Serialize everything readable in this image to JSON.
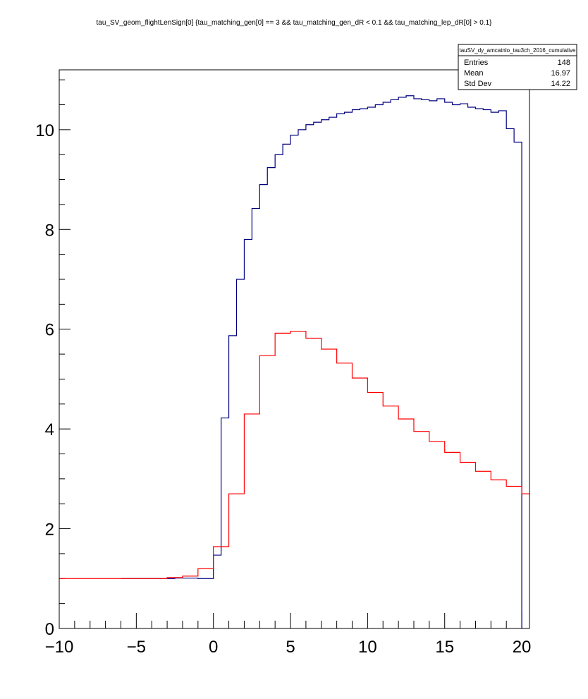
{
  "chart_data": {
    "type": "line",
    "title": "tau_SV_geom_flightLenSign[0] {tau_matching_gen[0] == 3 && tau_matching_gen_dR < 0.1 && tau_matching_lep_dR[0] > 0.1}",
    "xlabel": "",
    "ylabel": "",
    "xlim": [
      -10,
      20.5
    ],
    "ylim": [
      0,
      11.2
    ],
    "x_ticks": [
      -10,
      -5,
      0,
      5,
      10,
      15,
      20
    ],
    "y_ticks": [
      0,
      2,
      4,
      6,
      8,
      10
    ],
    "grid": false,
    "legend": "none",
    "stats_box": {
      "name": "tauSV_dy_amcatnlo_tau3ch_2016_cumulative",
      "rows": [
        {
          "label": "Entries",
          "value": "148"
        },
        {
          "label": "Mean",
          "value": "16.97"
        },
        {
          "label": "Std Dev",
          "value": "14.22"
        }
      ]
    },
    "series": [
      {
        "color": "#000080",
        "style": "step",
        "bin_edges": [
          -6,
          -2.5,
          -1,
          0,
          0.5,
          1,
          1.5,
          2,
          2.5,
          3,
          3.5,
          4,
          4.5,
          5,
          5.5,
          6,
          6.5,
          7,
          7.5,
          8,
          8.5,
          9,
          9.5,
          10,
          10.5,
          11,
          11.5,
          12,
          12.5,
          13,
          13.5,
          14,
          14.5,
          15,
          15.5,
          16,
          16.5,
          17,
          17.5,
          18,
          18.5,
          19,
          19.5,
          20
        ],
        "values": [
          1.0,
          1.01,
          1.0,
          1.47,
          4.22,
          5.87,
          7.0,
          7.8,
          8.42,
          8.9,
          9.24,
          9.5,
          9.71,
          9.89,
          10.0,
          10.1,
          10.15,
          10.2,
          10.25,
          10.32,
          10.35,
          10.4,
          10.42,
          10.45,
          10.5,
          10.55,
          10.6,
          10.65,
          10.68,
          10.62,
          10.6,
          10.58,
          10.62,
          10.55,
          10.5,
          10.52,
          10.45,
          10.42,
          10.4,
          10.35,
          10.38,
          10.02,
          9.75
        ]
      },
      {
        "color": "#ff0000",
        "style": "step",
        "bin_edges": [
          -10,
          -6,
          -3,
          -2,
          -1,
          0,
          1,
          2,
          3,
          4,
          5,
          6,
          7,
          8,
          9,
          10,
          11,
          12,
          13,
          14,
          15,
          16,
          17,
          18,
          19,
          20,
          20.5
        ],
        "values": [
          1.0,
          1.0,
          1.02,
          1.05,
          1.2,
          1.64,
          2.7,
          4.3,
          5.47,
          5.92,
          5.96,
          5.82,
          5.6,
          5.32,
          5.02,
          4.73,
          4.46,
          4.2,
          3.95,
          3.75,
          3.53,
          3.33,
          3.15,
          2.98,
          2.85,
          2.7
        ]
      }
    ]
  }
}
